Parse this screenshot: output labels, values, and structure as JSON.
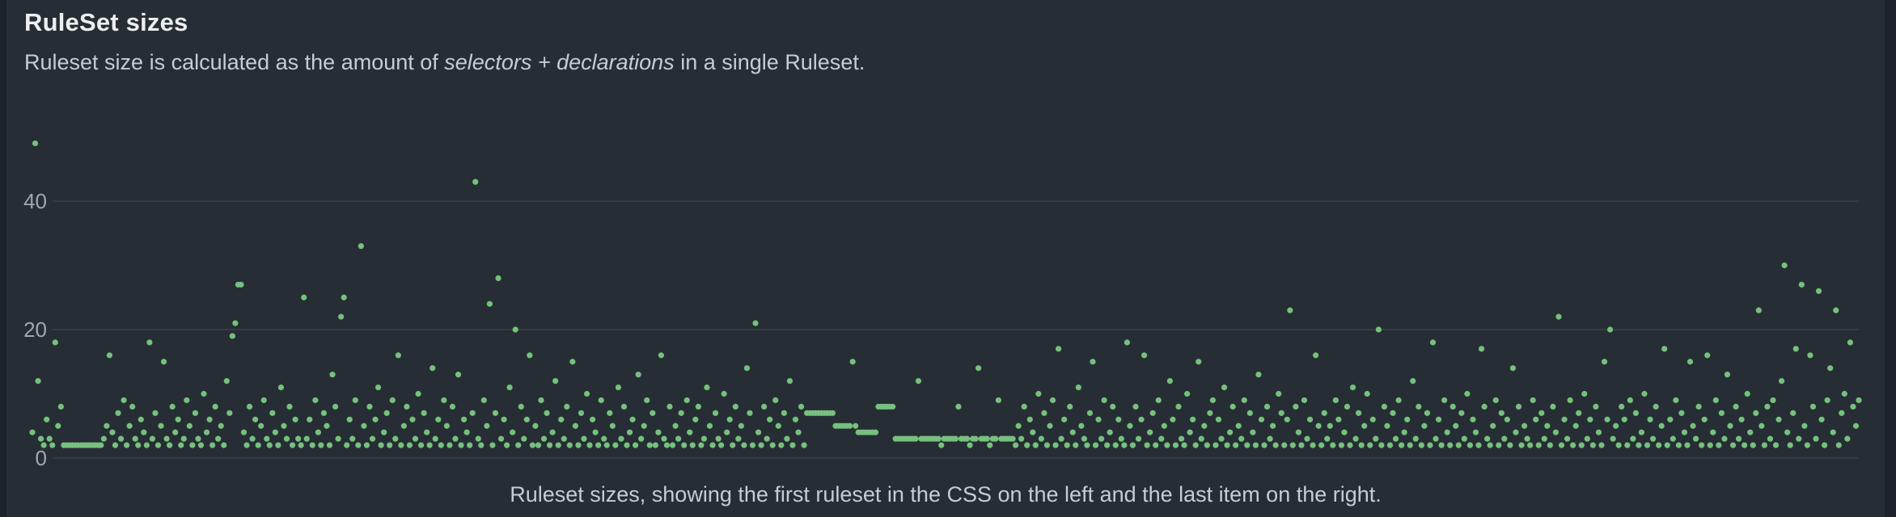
{
  "page": {
    "title": "RuleSet sizes",
    "subtitle_prefix": "Ruleset size is calculated as the amount of ",
    "subtitle_italic": "selectors + declarations",
    "subtitle_suffix": " in a single Ruleset.",
    "caption": "Ruleset sizes, showing the first ruleset in the CSS on the left and the last item on the right."
  },
  "colors": {
    "page_bg": "#1e232b",
    "card_bg": "#272d34",
    "dot": "#75c17d",
    "grid": "#3a4149",
    "title_text": "#eceef0",
    "body_text": "#c7ccd1",
    "axis_text": "#a0a7ae"
  },
  "chart_data": {
    "type": "scatter",
    "title": "RuleSet sizes",
    "xlabel": "",
    "ylabel": "",
    "x_axis": "ruleset order in the CSS (first ruleset on the left, last on the right)",
    "y_ticks": [
      0,
      20,
      40
    ],
    "ylim": [
      0,
      52
    ],
    "grid": true,
    "legend": false,
    "values": [
      4,
      49,
      12,
      3,
      2,
      6,
      3,
      2,
      18,
      5,
      8,
      2,
      2,
      2,
      2,
      2,
      2,
      2,
      2,
      2,
      2,
      2,
      2,
      2,
      2,
      3,
      5,
      16,
      4,
      2,
      7,
      3,
      9,
      2,
      5,
      8,
      3,
      2,
      6,
      4,
      2,
      18,
      3,
      7,
      2,
      5,
      15,
      3,
      2,
      8,
      4,
      6,
      2,
      3,
      9,
      5,
      2,
      7,
      3,
      2,
      10,
      4,
      6,
      2,
      8,
      3,
      5,
      2,
      12,
      7,
      19,
      21,
      27,
      27,
      4,
      2,
      8,
      3,
      6,
      2,
      5,
      9,
      3,
      2,
      7,
      4,
      2,
      11,
      5,
      3,
      8,
      2,
      6,
      3,
      2,
      25,
      3,
      6,
      2,
      9,
      4,
      2,
      7,
      5,
      2,
      13,
      8,
      3,
      22,
      25,
      2,
      6,
      3,
      9,
      2,
      33,
      5,
      2,
      8,
      3,
      6,
      11,
      2,
      4,
      7,
      2,
      9,
      3,
      16,
      2,
      5,
      8,
      2,
      6,
      3,
      10,
      2,
      7,
      4,
      2,
      14,
      3,
      6,
      2,
      9,
      5,
      2,
      8,
      3,
      13,
      2,
      6,
      4,
      2,
      7,
      43,
      3,
      2,
      9,
      5,
      24,
      2,
      7,
      28,
      3,
      6,
      2,
      11,
      4,
      20,
      2,
      8,
      3,
      6,
      16,
      2,
      5,
      2,
      9,
      3,
      7,
      2,
      4,
      12,
      2,
      6,
      3,
      8,
      2,
      15,
      5,
      2,
      7,
      3,
      10,
      2,
      6,
      4,
      2,
      9,
      3,
      2,
      7,
      5,
      2,
      11,
      3,
      8,
      2,
      4,
      6,
      2,
      13,
      3,
      5,
      9,
      2,
      7,
      2,
      4,
      16,
      3,
      2,
      8,
      2,
      5,
      3,
      7,
      2,
      9,
      4,
      2,
      6,
      8,
      2,
      3,
      11,
      5,
      2,
      7,
      3,
      2,
      10,
      4,
      6,
      2,
      8,
      3,
      5,
      2,
      14,
      7,
      2,
      21,
      4,
      2,
      8,
      3,
      6,
      2,
      9,
      5,
      2,
      7,
      3,
      12,
      2,
      6,
      4,
      8,
      2,
      7,
      7,
      7,
      7,
      7,
      7,
      7,
      7,
      7,
      7,
      5,
      5,
      5,
      5,
      5,
      5,
      15,
      5,
      4,
      4,
      4,
      4,
      4,
      4,
      4,
      8,
      8,
      8,
      8,
      8,
      8,
      3,
      3,
      3,
      3,
      3,
      3,
      3,
      3,
      12,
      3,
      3,
      3,
      3,
      3,
      3,
      3,
      2,
      3,
      3,
      3,
      3,
      3,
      8,
      3,
      3,
      3,
      2,
      3,
      3,
      14,
      3,
      3,
      3,
      2,
      3,
      3,
      9,
      3,
      3,
      3,
      3,
      3,
      2,
      5,
      3,
      8,
      2,
      6,
      4,
      2,
      10,
      3,
      7,
      2,
      5,
      9,
      2,
      17,
      3,
      6,
      2,
      8,
      4,
      2,
      11,
      5,
      3,
      2,
      7,
      15,
      2,
      6,
      3,
      9,
      2,
      4,
      8,
      2,
      6,
      3,
      2,
      18,
      5,
      2,
      8,
      3,
      6,
      16,
      2,
      4,
      7,
      2,
      9,
      3,
      5,
      2,
      12,
      6,
      2,
      8,
      3,
      2,
      10,
      4,
      6,
      2,
      15,
      3,
      5,
      2,
      7,
      9,
      2,
      6,
      3,
      11,
      2,
      4,
      8,
      2,
      5,
      3,
      9,
      2,
      7,
      4,
      2,
      13,
      6,
      2,
      8,
      3,
      5,
      2,
      10,
      7,
      2,
      6,
      23,
      2,
      8,
      4,
      2,
      9,
      3,
      6,
      2,
      16,
      5,
      2,
      7,
      3,
      5,
      2,
      9,
      6,
      2,
      4,
      8,
      2,
      11,
      3,
      7,
      2,
      5,
      10,
      2,
      6,
      3,
      20,
      2,
      8,
      5,
      2,
      7,
      3,
      9,
      2,
      4,
      6,
      2,
      12,
      3,
      8,
      2,
      5,
      7,
      2,
      18,
      3,
      6,
      2,
      9,
      4,
      2,
      8,
      5,
      2,
      7,
      3,
      10,
      2,
      6,
      4,
      2,
      17,
      8,
      3,
      2,
      5,
      9,
      2,
      7,
      3,
      6,
      2,
      14,
      4,
      8,
      2,
      5,
      3,
      2,
      9,
      6,
      2,
      7,
      3,
      5,
      2,
      8,
      4,
      22,
      2,
      6,
      3,
      9,
      2,
      5,
      7,
      2,
      10,
      3,
      6,
      2,
      8,
      4,
      2,
      15,
      6,
      20,
      3,
      5,
      2,
      8,
      6,
      2,
      9,
      3,
      7,
      2,
      4,
      10,
      2,
      6,
      3,
      8,
      2,
      5,
      17,
      2,
      6,
      3,
      9,
      2,
      7,
      4,
      2,
      15,
      5,
      3,
      8,
      2,
      6,
      16,
      2,
      4,
      9,
      2,
      7,
      3,
      13,
      5,
      2,
      8,
      3,
      6,
      2,
      10,
      4,
      2,
      7,
      23,
      5,
      2,
      8,
      3,
      9,
      2,
      6,
      12,
      30,
      4,
      2,
      7,
      17,
      3,
      27,
      5,
      2,
      16,
      8,
      3,
      26,
      6,
      2,
      9,
      14,
      4,
      23,
      2,
      7,
      10,
      3,
      18,
      8,
      5,
      9
    ]
  }
}
